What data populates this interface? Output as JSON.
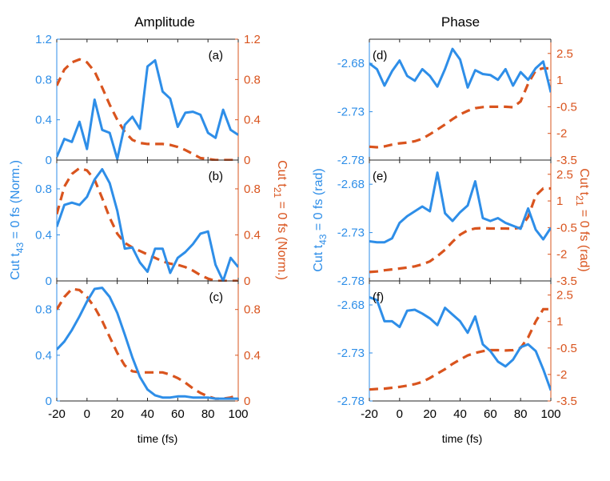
{
  "colors": {
    "blue": "#2e8ee8",
    "orange": "#d9541e",
    "axis": "#262626"
  },
  "chart_data": {
    "type": "line",
    "columns": [
      {
        "title": "Amplitude",
        "left_label_main": "Cut t",
        "left_label_sub": "43",
        "left_label_rest": " = 0 fs (Norm.)",
        "right_label_main": "Cut t",
        "right_label_sub": "21",
        "right_label_rest": " = 0 fs (Norm.)"
      },
      {
        "title": "Phase",
        "left_label_main": "Cut t",
        "left_label_sub": "43",
        "left_label_rest": " = 0 fs (rad)",
        "right_label_main": "Cut t",
        "right_label_sub": "21",
        "right_label_rest": " = 0 fs (rad)"
      }
    ],
    "xlabel": "time (fs)",
    "xlim": [
      -20,
      100
    ],
    "xticks": [
      "-20",
      "0",
      "20",
      "40",
      "60",
      "80",
      "100"
    ],
    "panels": [
      {
        "label": "(a)",
        "col": 0,
        "row": 0,
        "left_ylim": [
          0,
          1.2
        ],
        "left_ticks": [
          0,
          0.4,
          0.8,
          1.2
        ],
        "left_tick_labels": [
          "0",
          "0.4",
          "0.8",
          "1.2"
        ],
        "right_ylim": [
          0,
          1.2
        ],
        "right_ticks": [
          0,
          0.4,
          0.8,
          1.2
        ],
        "right_tick_labels": [
          "0",
          "0.4",
          "0.8",
          "1.2"
        ],
        "left_series": {
          "x": [
            -20,
            -15,
            -10,
            -5,
            0,
            5,
            10,
            15,
            20,
            25,
            30,
            35,
            40,
            45,
            50,
            55,
            60,
            65,
            70,
            75,
            80,
            85,
            90,
            95,
            100
          ],
          "y": [
            0.03,
            0.21,
            0.18,
            0.38,
            0.11,
            0.6,
            0.3,
            0.27,
            0.01,
            0.35,
            0.43,
            0.31,
            0.93,
            0.99,
            0.68,
            0.61,
            0.33,
            0.47,
            0.48,
            0.45,
            0.27,
            0.22,
            0.5,
            0.3,
            0.25
          ]
        },
        "right_series": {
          "x": [
            -20,
            -15,
            -10,
            -5,
            0,
            5,
            10,
            15,
            20,
            25,
            30,
            35,
            40,
            45,
            50,
            55,
            60,
            65,
            70,
            75,
            80,
            85,
            90,
            95,
            100
          ],
          "y": [
            0.74,
            0.9,
            0.97,
            1.0,
            0.97,
            0.88,
            0.72,
            0.55,
            0.4,
            0.28,
            0.2,
            0.17,
            0.16,
            0.16,
            0.16,
            0.15,
            0.13,
            0.1,
            0.06,
            0.02,
            0.01,
            0.0,
            0.0,
            0.0,
            0.0
          ]
        }
      },
      {
        "label": "(b)",
        "col": 0,
        "row": 1,
        "left_ylim": [
          0,
          1.05
        ],
        "left_ticks": [
          0,
          0.4,
          0.8
        ],
        "left_tick_labels": [
          "0",
          "0.4",
          "0.8"
        ],
        "right_ylim": [
          0,
          1.05
        ],
        "right_ticks": [
          0,
          0.4,
          0.8
        ],
        "right_tick_labels": [
          "0",
          "0.4",
          "0.8"
        ],
        "left_series": {
          "x": [
            -20,
            -15,
            -10,
            -5,
            0,
            5,
            10,
            15,
            20,
            25,
            30,
            35,
            40,
            45,
            50,
            55,
            60,
            65,
            70,
            75,
            80,
            85,
            90,
            95,
            100
          ],
          "y": [
            0.47,
            0.66,
            0.68,
            0.66,
            0.73,
            0.88,
            0.97,
            0.85,
            0.61,
            0.28,
            0.29,
            0.16,
            0.08,
            0.28,
            0.28,
            0.07,
            0.2,
            0.25,
            0.32,
            0.41,
            0.43,
            0.14,
            0.0,
            0.2,
            0.12
          ]
        },
        "right_series": {
          "x": [
            -20,
            -15,
            -10,
            -5,
            0,
            5,
            10,
            15,
            20,
            25,
            30,
            35,
            40,
            45,
            50,
            55,
            60,
            65,
            70,
            75,
            80,
            85,
            90,
            95,
            100
          ],
          "y": [
            0.58,
            0.82,
            0.93,
            0.98,
            0.96,
            0.88,
            0.72,
            0.55,
            0.41,
            0.33,
            0.29,
            0.26,
            0.23,
            0.2,
            0.17,
            0.15,
            0.14,
            0.12,
            0.09,
            0.05,
            0.02,
            0.0,
            0.0,
            0.0,
            0.0
          ]
        }
      },
      {
        "label": "(c)",
        "col": 0,
        "row": 2,
        "left_ylim": [
          0,
          1.05
        ],
        "left_ticks": [
          0,
          0.4,
          0.8
        ],
        "left_tick_labels": [
          "0",
          "0.4",
          "0.8"
        ],
        "right_ylim": [
          0,
          1.05
        ],
        "right_ticks": [
          0,
          0.4,
          0.8
        ],
        "right_tick_labels": [
          "0",
          "0.4",
          "0.8"
        ],
        "left_series": {
          "x": [
            -20,
            -15,
            -10,
            -5,
            0,
            5,
            10,
            15,
            20,
            25,
            30,
            35,
            40,
            45,
            50,
            55,
            60,
            65,
            70,
            75,
            80,
            85,
            90,
            95,
            100
          ],
          "y": [
            0.45,
            0.52,
            0.62,
            0.74,
            0.87,
            0.98,
            0.99,
            0.91,
            0.77,
            0.58,
            0.38,
            0.21,
            0.1,
            0.05,
            0.03,
            0.03,
            0.04,
            0.04,
            0.03,
            0.03,
            0.03,
            0.02,
            0.02,
            0.02,
            0.02
          ]
        },
        "right_series": {
          "x": [
            -20,
            -15,
            -10,
            -5,
            0,
            5,
            10,
            15,
            20,
            25,
            30,
            35,
            40,
            45,
            50,
            55,
            60,
            65,
            70,
            75,
            80,
            85,
            90,
            95,
            100
          ],
          "y": [
            0.8,
            0.91,
            0.98,
            0.97,
            0.91,
            0.82,
            0.7,
            0.56,
            0.42,
            0.31,
            0.26,
            0.25,
            0.25,
            0.25,
            0.25,
            0.23,
            0.2,
            0.16,
            0.11,
            0.07,
            0.04,
            0.02,
            0.02,
            0.03,
            0.05
          ]
        }
      },
      {
        "label": "(d)",
        "col": 1,
        "row": 0,
        "left_ylim": [
          -2.78,
          -2.655
        ],
        "left_ticks": [
          -2.78,
          -2.73,
          -2.68
        ],
        "left_tick_labels": [
          "-2.78",
          "-2.73",
          "-2.68"
        ],
        "right_ylim": [
          -3.5,
          3.3
        ],
        "right_ticks": [
          -3.5,
          -2,
          -0.5,
          1,
          2.5
        ],
        "right_tick_labels": [
          "-3.5",
          "-2",
          "-0.5",
          "1",
          "2.5"
        ],
        "left_series": {
          "x": [
            -20,
            -15,
            -10,
            -5,
            0,
            5,
            10,
            15,
            20,
            25,
            30,
            35,
            40,
            45,
            50,
            55,
            60,
            65,
            70,
            75,
            80,
            85,
            90,
            95,
            100
          ],
          "y": [
            -2.68,
            -2.686,
            -2.703,
            -2.688,
            -2.677,
            -2.693,
            -2.698,
            -2.686,
            -2.693,
            -2.704,
            -2.686,
            -2.665,
            -2.676,
            -2.705,
            -2.687,
            -2.691,
            -2.692,
            -2.697,
            -2.686,
            -2.703,
            -2.689,
            -2.697,
            -2.685,
            -2.678,
            -2.71
          ]
        },
        "right_series": {
          "x": [
            -20,
            -15,
            -10,
            -5,
            0,
            5,
            10,
            15,
            20,
            25,
            30,
            35,
            40,
            45,
            50,
            55,
            60,
            65,
            70,
            75,
            80,
            85,
            90,
            95,
            100
          ],
          "y": [
            -2.75,
            -2.78,
            -2.73,
            -2.63,
            -2.56,
            -2.52,
            -2.44,
            -2.3,
            -2.05,
            -1.78,
            -1.5,
            -1.2,
            -0.93,
            -0.73,
            -0.58,
            -0.52,
            -0.5,
            -0.5,
            -0.5,
            -0.53,
            -0.2,
            0.8,
            1.55,
            1.67,
            1.65
          ]
        }
      },
      {
        "label": "(e)",
        "col": 1,
        "row": 1,
        "left_ylim": [
          -2.78,
          -2.655
        ],
        "left_ticks": [
          -2.78,
          -2.73,
          -2.68
        ],
        "left_tick_labels": [
          "-2.78",
          "-2.73",
          "-2.68"
        ],
        "right_ylim": [
          -3.5,
          3.3
        ],
        "right_ticks": [
          -3.5,
          -2,
          -0.5,
          1,
          2.5
        ],
        "right_tick_labels": [
          "-3.5",
          "-2",
          "-0.5",
          "1",
          "2.5"
        ],
        "left_series": {
          "x": [
            -20,
            -15,
            -10,
            -5,
            0,
            5,
            10,
            15,
            20,
            25,
            30,
            35,
            40,
            45,
            50,
            55,
            60,
            65,
            70,
            75,
            80,
            85,
            90,
            95,
            100
          ],
          "y": [
            -2.739,
            -2.74,
            -2.74,
            -2.736,
            -2.72,
            -2.713,
            -2.708,
            -2.703,
            -2.708,
            -2.668,
            -2.71,
            -2.718,
            -2.709,
            -2.702,
            -2.677,
            -2.715,
            -2.718,
            -2.715,
            -2.72,
            -2.723,
            -2.726,
            -2.705,
            -2.727,
            -2.737,
            -2.725
          ]
        },
        "right_series": {
          "x": [
            -20,
            -15,
            -10,
            -5,
            0,
            5,
            10,
            15,
            20,
            25,
            30,
            35,
            40,
            45,
            50,
            55,
            60,
            65,
            70,
            75,
            80,
            85,
            90,
            95,
            100
          ],
          "y": [
            -3.0,
            -2.97,
            -2.9,
            -2.85,
            -2.8,
            -2.75,
            -2.68,
            -2.57,
            -2.4,
            -2.1,
            -1.75,
            -1.3,
            -0.9,
            -0.65,
            -0.55,
            -0.53,
            -0.55,
            -0.55,
            -0.55,
            -0.57,
            -0.5,
            0.1,
            1.3,
            1.7,
            1.7
          ]
        }
      },
      {
        "label": "(f)",
        "col": 1,
        "row": 2,
        "left_ylim": [
          -2.78,
          -2.655
        ],
        "left_ticks": [
          -2.78,
          -2.73,
          -2.68
        ],
        "left_tick_labels": [
          "-2.78",
          "-2.73",
          "-2.68"
        ],
        "right_ylim": [
          -3.5,
          3.3
        ],
        "right_ticks": [
          -3.5,
          -2,
          -0.5,
          1,
          2.5
        ],
        "right_tick_labels": [
          "-3.5",
          "-2",
          "-0.5",
          "1",
          "2.5"
        ],
        "left_series": {
          "x": [
            -20,
            -15,
            -10,
            -5,
            0,
            5,
            10,
            15,
            20,
            25,
            30,
            35,
            40,
            45,
            50,
            55,
            60,
            65,
            70,
            75,
            80,
            85,
            90,
            95,
            100
          ],
          "y": [
            -2.672,
            -2.675,
            -2.697,
            -2.697,
            -2.703,
            -2.686,
            -2.685,
            -2.689,
            -2.694,
            -2.701,
            -2.683,
            -2.69,
            -2.697,
            -2.709,
            -2.692,
            -2.721,
            -2.728,
            -2.739,
            -2.744,
            -2.737,
            -2.724,
            -2.721,
            -2.728,
            -2.747,
            -2.769
          ]
        },
        "right_series": {
          "x": [
            -20,
            -15,
            -10,
            -5,
            0,
            5,
            10,
            15,
            20,
            25,
            30,
            35,
            40,
            45,
            50,
            55,
            60,
            65,
            70,
            75,
            80,
            85,
            90,
            95,
            100
          ],
          "y": [
            -2.85,
            -2.82,
            -2.8,
            -2.75,
            -2.7,
            -2.63,
            -2.55,
            -2.42,
            -2.2,
            -1.95,
            -1.7,
            -1.4,
            -1.15,
            -0.92,
            -0.78,
            -0.68,
            -0.62,
            -0.62,
            -0.64,
            -0.62,
            -0.5,
            0.1,
            1.0,
            1.7,
            1.7
          ]
        }
      }
    ]
  }
}
